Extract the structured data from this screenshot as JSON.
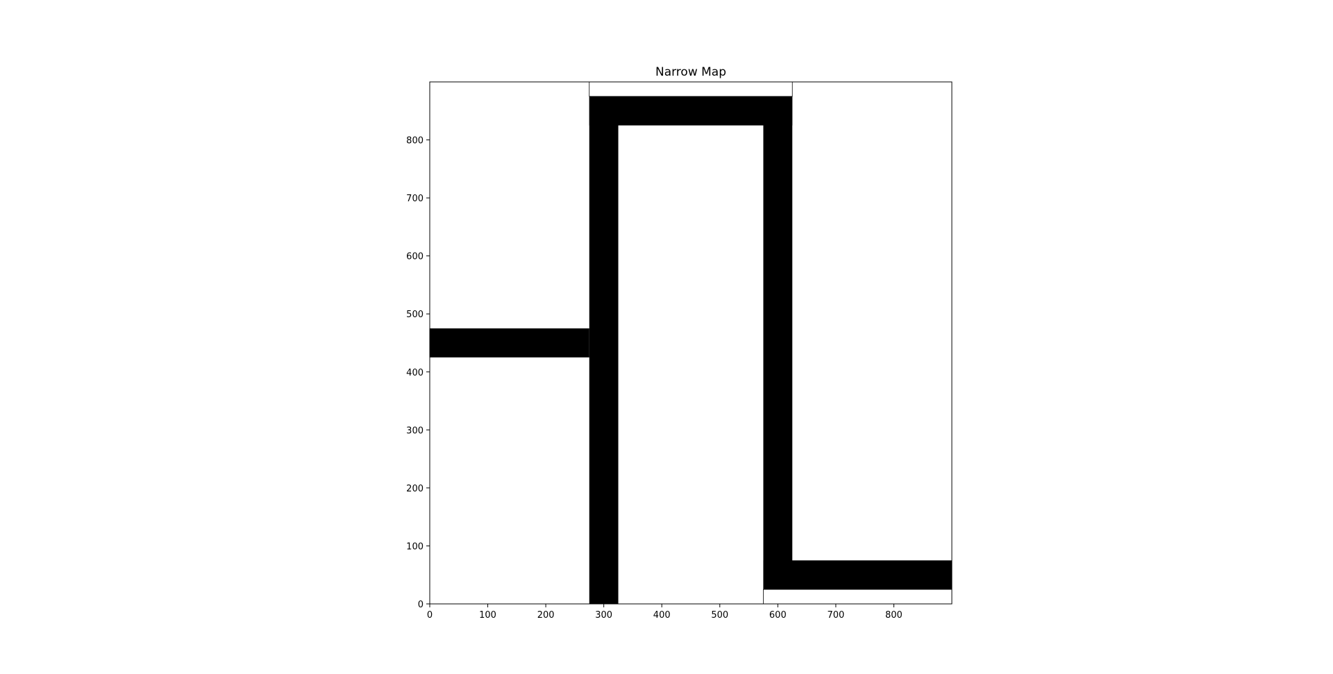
{
  "chart_data": {
    "type": "heatmap",
    "title": "Narrow Map",
    "xlabel": "",
    "ylabel": "",
    "xlim": [
      0,
      900
    ],
    "ylim": [
      0,
      900
    ],
    "x_ticks": [
      0,
      100,
      200,
      300,
      400,
      500,
      600,
      700,
      800
    ],
    "y_ticks": [
      0,
      100,
      200,
      300,
      400,
      500,
      600,
      700,
      800
    ],
    "grid": false,
    "background_color": "#ffffff",
    "obstacle_color": "#000000",
    "obstacles": [
      {
        "x": [
          0,
          275
        ],
        "y": [
          425,
          475
        ]
      },
      {
        "x": [
          275,
          325
        ],
        "y": [
          0,
          875
        ]
      },
      {
        "x": [
          275,
          625
        ],
        "y": [
          825,
          875
        ]
      },
      {
        "x": [
          575,
          625
        ],
        "y": [
          25,
          875
        ]
      },
      {
        "x": [
          575,
          900
        ],
        "y": [
          25,
          75
        ]
      }
    ],
    "region_outlines": [
      {
        "x": [
          275,
          625
        ],
        "y": [
          875,
          900
        ]
      },
      {
        "x": [
          575,
          900
        ],
        "y": [
          0,
          25
        ]
      }
    ]
  }
}
